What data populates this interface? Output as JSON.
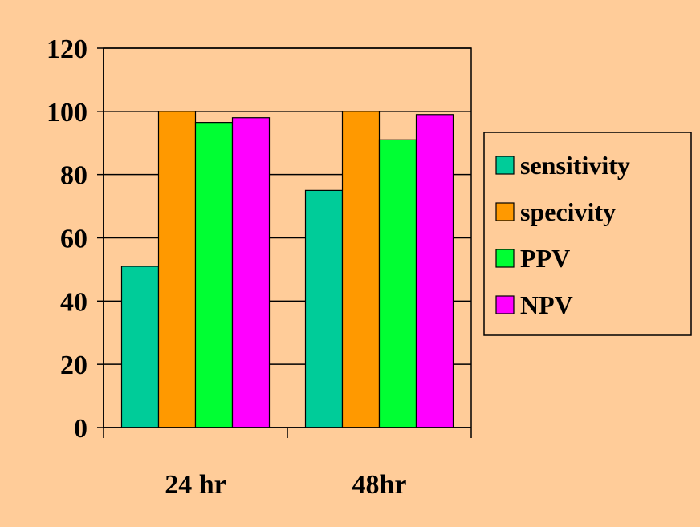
{
  "chart_data": {
    "type": "bar",
    "categories": [
      "24 hr",
      "48hr"
    ],
    "series": [
      {
        "name": "sensitivity",
        "values": [
          51,
          75
        ],
        "color": "#00CC99"
      },
      {
        "name": "specivity",
        "values": [
          100,
          100
        ],
        "color": "#FF9900"
      },
      {
        "name": "PPV",
        "values": [
          96.5,
          91
        ],
        "color": "#00FF33"
      },
      {
        "name": "NPV",
        "values": [
          98,
          99
        ],
        "color": "#FF00FF"
      }
    ],
    "ylim": [
      0,
      120
    ],
    "yticks": [
      "0",
      "20",
      "40",
      "60",
      "80",
      "100",
      "120"
    ],
    "grid": true,
    "legend_position": "right",
    "background_color": "#FFCC99",
    "plot_background_color": "#FFCC99"
  }
}
